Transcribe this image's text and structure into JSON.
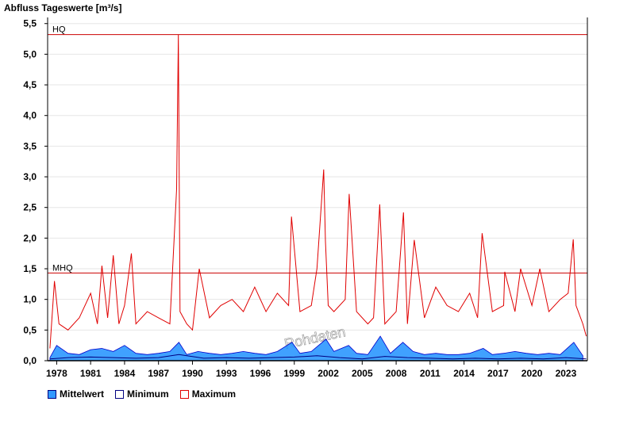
{
  "chart_data": {
    "type": "line",
    "title": "Abfluss Tageswerte [m³/s]",
    "xlabel": "",
    "ylabel": "Abfluss Tageswerte [m³/s]",
    "xlim": [
      1977.2,
      2024.9
    ],
    "ylim": [
      0,
      5.6
    ],
    "yticks": [
      "0,0",
      "0,5",
      "1,0",
      "1,5",
      "2,0",
      "2,5",
      "3,0",
      "3,5",
      "4,0",
      "4,5",
      "5,0",
      "5,5"
    ],
    "ytick_values": [
      0,
      0.5,
      1.0,
      1.5,
      2.0,
      2.5,
      3.0,
      3.5,
      4.0,
      4.5,
      5.0,
      5.5
    ],
    "xticks": [
      "1978",
      "1981",
      "1984",
      "1987",
      "1990",
      "1993",
      "1996",
      "1999",
      "2002",
      "2005",
      "2008",
      "2011",
      "2014",
      "2017",
      "2020",
      "2023"
    ],
    "xtick_values": [
      1978,
      1981,
      1984,
      1987,
      1990,
      1993,
      1996,
      1999,
      2002,
      2005,
      2008,
      2011,
      2014,
      2017,
      2020,
      2023
    ],
    "grid": true,
    "legend_position": "bottom-left",
    "reference_lines": [
      {
        "label": "HQ",
        "value": 5.32,
        "color": "#cc0000"
      },
      {
        "label": "MHQ",
        "value": 1.43,
        "color": "#cc0000"
      }
    ],
    "watermark": "Rohdaten",
    "series": [
      {
        "name": "Mittelwert",
        "color": "#1e90ff",
        "kind": "area",
        "x": [
          1977.4,
          1978.0,
          1979.0,
          1980.0,
          1981.0,
          1982.0,
          1983.0,
          1984.0,
          1985.0,
          1986.0,
          1987.0,
          1988.0,
          1988.8,
          1989.5,
          1990.5,
          1991.5,
          1992.5,
          1993.5,
          1994.5,
          1995.5,
          1996.5,
          1997.5,
          1998.8,
          1999.5,
          2000.5,
          2001.8,
          2002.5,
          2003.8,
          2004.5,
          2005.5,
          2006.6,
          2007.5,
          2008.6,
          2009.5,
          2010.5,
          2011.5,
          2012.5,
          2013.5,
          2014.5,
          2015.7,
          2016.5,
          2017.5,
          2018.5,
          2019.5,
          2020.5,
          2021.5,
          2022.5,
          2023.7,
          2024.5
        ],
        "y": [
          0.05,
          0.25,
          0.12,
          0.1,
          0.18,
          0.2,
          0.15,
          0.25,
          0.12,
          0.1,
          0.12,
          0.15,
          0.3,
          0.1,
          0.15,
          0.12,
          0.1,
          0.12,
          0.15,
          0.12,
          0.1,
          0.15,
          0.3,
          0.12,
          0.15,
          0.35,
          0.15,
          0.25,
          0.12,
          0.1,
          0.4,
          0.12,
          0.3,
          0.15,
          0.1,
          0.12,
          0.1,
          0.1,
          0.12,
          0.2,
          0.1,
          0.12,
          0.15,
          0.12,
          0.1,
          0.12,
          0.1,
          0.3,
          0.08
        ]
      },
      {
        "name": "Minimum",
        "color": "#000080",
        "kind": "line",
        "x": [
          1977.4,
          1979.0,
          1981.0,
          1983.0,
          1985.0,
          1987.0,
          1988.8,
          1991.0,
          1993.0,
          1995.0,
          1997.0,
          1999.0,
          2001.0,
          2003.0,
          2005.0,
          2007.0,
          2009.0,
          2011.0,
          2013.0,
          2015.0,
          2017.0,
          2019.0,
          2021.0,
          2023.0,
          2024.8
        ],
        "y": [
          0.03,
          0.05,
          0.06,
          0.05,
          0.04,
          0.05,
          0.1,
          0.04,
          0.05,
          0.04,
          0.05,
          0.06,
          0.08,
          0.05,
          0.03,
          0.07,
          0.05,
          0.04,
          0.03,
          0.04,
          0.03,
          0.04,
          0.03,
          0.05,
          0.03
        ]
      },
      {
        "name": "Maximum",
        "color": "#e00000",
        "kind": "line",
        "x": [
          1977.4,
          1977.8,
          1978.2,
          1979.0,
          1980.0,
          1981.0,
          1981.6,
          1982.0,
          1982.5,
          1983.0,
          1983.5,
          1984.0,
          1984.6,
          1985.0,
          1986.0,
          1987.0,
          1988.0,
          1988.6,
          1988.75,
          1988.9,
          1989.5,
          1990.0,
          1990.6,
          1991.5,
          1992.5,
          1993.5,
          1994.5,
          1995.5,
          1996.5,
          1997.5,
          1998.5,
          1998.75,
          1999.5,
          2000.5,
          2001.0,
          2001.6,
          2001.75,
          2002.0,
          2002.5,
          2003.5,
          2003.85,
          2004.5,
          2005.5,
          2006.0,
          2006.55,
          2007.0,
          2008.0,
          2008.65,
          2009.0,
          2009.6,
          2010.5,
          2011.5,
          2012.5,
          2013.5,
          2014.5,
          2015.2,
          2015.6,
          2016.5,
          2017.5,
          2017.6,
          2018.5,
          2019.0,
          2020.0,
          2020.7,
          2021.5,
          2022.5,
          2023.2,
          2023.65,
          2023.9,
          2024.5,
          2024.8
        ],
        "y": [
          0.2,
          1.3,
          0.6,
          0.5,
          0.7,
          1.1,
          0.6,
          1.55,
          0.7,
          1.72,
          0.6,
          0.9,
          1.75,
          0.6,
          0.8,
          0.7,
          0.6,
          2.8,
          5.32,
          0.8,
          0.6,
          0.5,
          1.5,
          0.7,
          0.9,
          1.0,
          0.8,
          1.2,
          0.8,
          1.1,
          0.9,
          2.35,
          0.8,
          0.9,
          1.5,
          3.12,
          1.95,
          0.9,
          0.8,
          1.0,
          2.72,
          0.8,
          0.6,
          0.7,
          2.55,
          0.6,
          0.8,
          2.42,
          0.6,
          1.97,
          0.7,
          1.2,
          0.9,
          0.8,
          1.1,
          0.7,
          2.08,
          0.8,
          0.9,
          1.45,
          0.8,
          1.5,
          0.9,
          1.5,
          0.8,
          1.0,
          1.1,
          1.98,
          0.9,
          0.6,
          0.4
        ]
      }
    ]
  },
  "legend": {
    "mean_label": "Mittelwert",
    "min_label": "Minimum",
    "max_label": "Maximum",
    "mean_color": "#3399ff",
    "min_color": "#000080",
    "max_color": "#e00000"
  }
}
